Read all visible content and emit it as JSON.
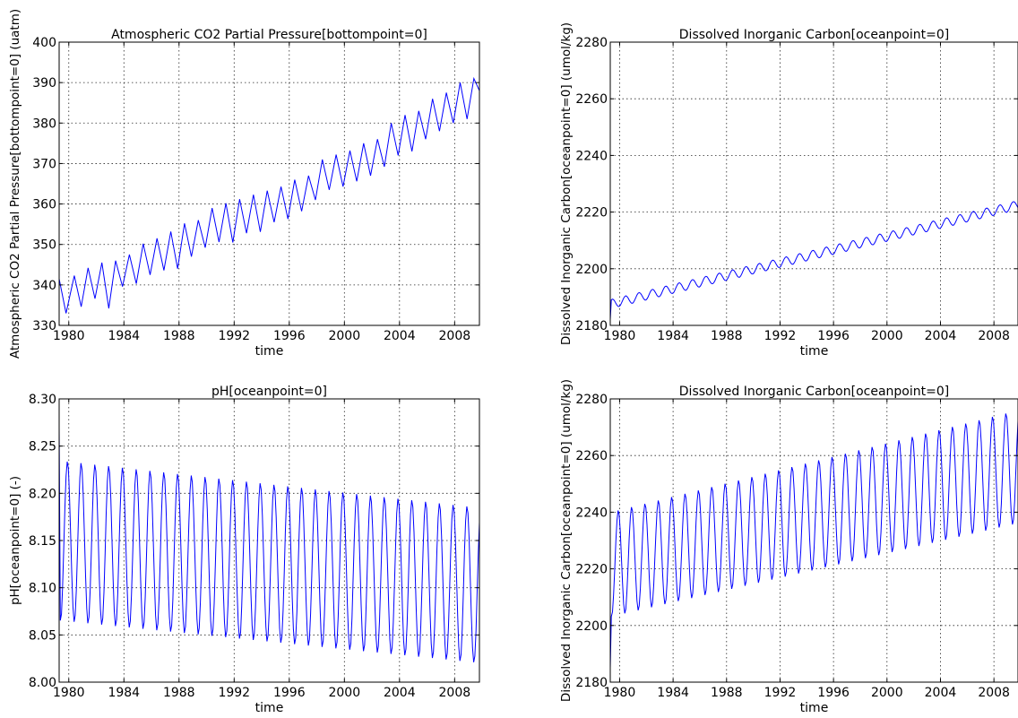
{
  "chart_data": [
    {
      "type": "line",
      "title": "Atmospheric CO2 Partial Pressure[bottompoint=0]",
      "xlabel": "time",
      "ylabel": "Atmospheric CO2 Partial Pressure[bottompoint=0] (uatm)",
      "xlim": [
        1979.3,
        2009.8
      ],
      "ylim": [
        330,
        400
      ],
      "xticks": [
        1980,
        1984,
        1988,
        1992,
        1996,
        2000,
        2004,
        2008
      ],
      "yticks": [
        330,
        340,
        350,
        360,
        370,
        380,
        390,
        400
      ],
      "ytick_labels": [
        "330",
        "340",
        "350",
        "360",
        "370",
        "380",
        "390",
        "400"
      ],
      "grid": true,
      "series": [
        {
          "color": "#0000ff",
          "trend": {
            "start": 336.5,
            "end": 387.0
          },
          "seasonal_amplitude": 4.0,
          "annual_points": [
            [
              1979.3,
              341.5
            ],
            [
              1979.8,
              333.0
            ],
            [
              1980.4,
              342.3
            ],
            [
              1980.9,
              334.6
            ],
            [
              1981.4,
              344.2
            ],
            [
              1981.9,
              336.6
            ],
            [
              1982.4,
              345.5
            ],
            [
              1982.9,
              334.2
            ],
            [
              1983.4,
              346.0
            ],
            [
              1983.9,
              339.6
            ],
            [
              1984.4,
              347.5
            ],
            [
              1984.9,
              340.3
            ],
            [
              1985.4,
              350.2
            ],
            [
              1985.9,
              342.5
            ],
            [
              1986.4,
              351.5
            ],
            [
              1986.9,
              343.6
            ],
            [
              1987.4,
              353.2
            ],
            [
              1987.9,
              344.0
            ],
            [
              1988.4,
              355.2
            ],
            [
              1988.9,
              347.0
            ],
            [
              1989.4,
              356.0
            ],
            [
              1989.9,
              349.2
            ],
            [
              1990.4,
              359.0
            ],
            [
              1990.9,
              350.6
            ],
            [
              1991.4,
              360.2
            ],
            [
              1991.9,
              350.5
            ],
            [
              1992.4,
              361.2
            ],
            [
              1992.9,
              352.8
            ],
            [
              1993.4,
              362.3
            ],
            [
              1993.9,
              353.1
            ],
            [
              1994.4,
              363.3
            ],
            [
              1994.9,
              355.5
            ],
            [
              1995.4,
              364.3
            ],
            [
              1995.9,
              356.3
            ],
            [
              1996.4,
              366.0
            ],
            [
              1996.9,
              358.2
            ],
            [
              1997.4,
              367.0
            ],
            [
              1997.9,
              361.0
            ],
            [
              1998.4,
              371.0
            ],
            [
              1998.9,
              363.5
            ],
            [
              1999.4,
              372.2
            ],
            [
              1999.9,
              364.3
            ],
            [
              2000.4,
              373.2
            ],
            [
              2000.9,
              365.6
            ],
            [
              2001.4,
              375.0
            ],
            [
              2001.9,
              367.0
            ],
            [
              2002.4,
              376.0
            ],
            [
              2002.9,
              369.2
            ],
            [
              2003.4,
              380.0
            ],
            [
              2003.9,
              372.0
            ],
            [
              2004.4,
              382.0
            ],
            [
              2004.9,
              373.0
            ],
            [
              2005.4,
              383.0
            ],
            [
              2005.9,
              376.0
            ],
            [
              2006.4,
              386.0
            ],
            [
              2006.9,
              378.0
            ],
            [
              2007.4,
              387.5
            ],
            [
              2007.9,
              380.0
            ],
            [
              2008.4,
              390.0
            ],
            [
              2008.9,
              381.0
            ],
            [
              2009.4,
              391.0
            ],
            [
              2009.8,
              388.0
            ]
          ]
        }
      ]
    },
    {
      "type": "line",
      "title": "Dissolved Inorganic Carbon[oceanpoint=0]",
      "xlabel": "time",
      "ylabel": "Dissolved Inorganic Carbon[oceanpoint=0] (umol/kg)",
      "xlim": [
        1979.3,
        2009.8
      ],
      "ylim": [
        2180,
        2280
      ],
      "xticks": [
        1980,
        1984,
        1988,
        1992,
        1996,
        2000,
        2004,
        2008
      ],
      "yticks": [
        2180,
        2200,
        2220,
        2240,
        2260,
        2280
      ],
      "ytick_labels": [
        "2180",
        "2200",
        "2220",
        "2240",
        "2260",
        "2280"
      ],
      "grid": true,
      "series": [
        {
          "color": "#0000ff",
          "start_value": 2182,
          "trend": {
            "start": 2187.5,
            "end": 2222.5
          },
          "seasonal_amplitude": 1.6
        }
      ]
    },
    {
      "type": "line",
      "title": "pH[oceanpoint=0]",
      "xlabel": "time",
      "ylabel": "pH[oceanpoint=0] (-)",
      "xlim": [
        1979.3,
        2009.8
      ],
      "ylim": [
        8.0,
        8.3
      ],
      "xticks": [
        1980,
        1984,
        1988,
        1992,
        1996,
        2000,
        2004,
        2008
      ],
      "yticks": [
        8.0,
        8.05,
        8.1,
        8.15,
        8.2,
        8.25,
        8.3
      ],
      "ytick_labels": [
        "8.00",
        "8.05",
        "8.10",
        "8.15",
        "8.20",
        "8.25",
        "8.30"
      ],
      "grid": true,
      "series": [
        {
          "color": "#0000ff",
          "start_value": 8.27,
          "peak": {
            "start": 8.235,
            "end": 8.185
          },
          "trough": {
            "start": 8.065,
            "end": 8.02
          }
        }
      ]
    },
    {
      "type": "line",
      "title": "Dissolved Inorganic Carbon[oceanpoint=0]",
      "xlabel": "time",
      "ylabel": "Dissolved Inorganic Carbon[oceanpoint=0] (umol/kg)",
      "xlim": [
        1979.3,
        2009.8
      ],
      "ylim": [
        2180,
        2280
      ],
      "xticks": [
        1980,
        1984,
        1988,
        1992,
        1996,
        2000,
        2004,
        2008
      ],
      "yticks": [
        2180,
        2200,
        2220,
        2240,
        2260,
        2280
      ],
      "ytick_labels": [
        "2180",
        "2200",
        "2220",
        "2240",
        "2260",
        "2280"
      ],
      "grid": true,
      "series": [
        {
          "color": "#0000ff",
          "start_value": 2185,
          "peak": {
            "start": 2240,
            "end": 2276
          },
          "trough": {
            "start": 2203,
            "end": 2236
          }
        }
      ]
    }
  ]
}
